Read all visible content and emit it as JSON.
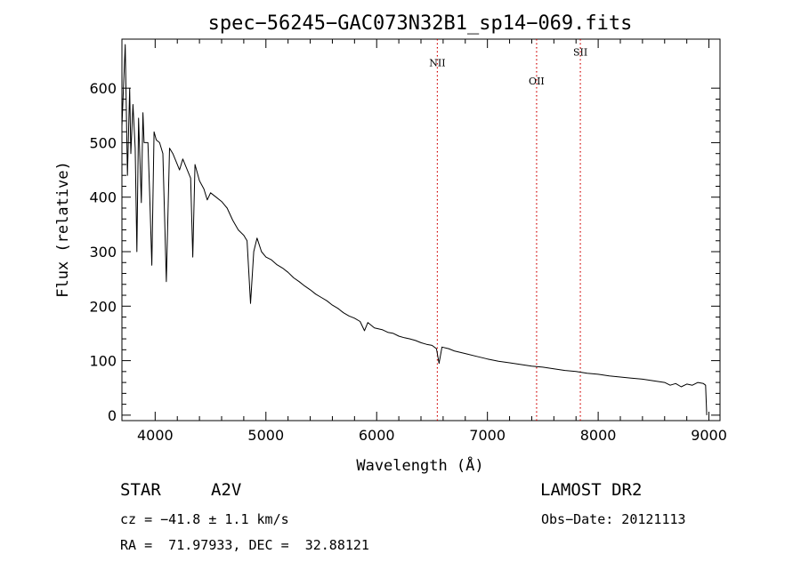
{
  "chart_data": {
    "type": "line",
    "title": "spec−56245−GAC073N32B1_sp14−069.fits",
    "xlabel": "Wavelength (Å)",
    "ylabel": "Flux (relative)",
    "xlim": [
      3700,
      9100
    ],
    "ylim": [
      -10,
      690
    ],
    "xticks": [
      {
        "value": 4000,
        "label": "4000"
      },
      {
        "value": 5000,
        "label": "5000"
      },
      {
        "value": 6000,
        "label": "6000"
      },
      {
        "value": 7000,
        "label": "7000"
      },
      {
        "value": 8000,
        "label": "8000"
      },
      {
        "value": 9000,
        "label": "9000"
      }
    ],
    "yticks": [
      {
        "value": 0,
        "label": "0"
      },
      {
        "value": 100,
        "label": "100"
      },
      {
        "value": 200,
        "label": "200"
      },
      {
        "value": 300,
        "label": "300"
      },
      {
        "value": 400,
        "label": "400"
      },
      {
        "value": 500,
        "label": "500"
      },
      {
        "value": 600,
        "label": "600"
      }
    ],
    "grid": false,
    "line_color": "#000000",
    "line_marker_color": "#d00000",
    "line_markers": [
      {
        "label": "NII",
        "wavelength": 6548,
        "label_y": 640
      },
      {
        "label": "OII",
        "wavelength": 7444,
        "label_y": 607
      },
      {
        "label": "SII",
        "wavelength": 7839,
        "label_y": 660
      }
    ],
    "series": [
      {
        "values": [
          [
            3700,
            530
          ],
          [
            3730,
            680
          ],
          [
            3750,
            440
          ],
          [
            3770,
            600
          ],
          [
            3780,
            480
          ],
          [
            3800,
            570
          ],
          [
            3820,
            490
          ],
          [
            3835,
            300
          ],
          [
            3850,
            545
          ],
          [
            3875,
            390
          ],
          [
            3890,
            555
          ],
          [
            3900,
            500
          ],
          [
            3935,
            500
          ],
          [
            3950,
            410
          ],
          [
            3970,
            275
          ],
          [
            3990,
            520
          ],
          [
            4010,
            505
          ],
          [
            4040,
            500
          ],
          [
            4070,
            480
          ],
          [
            4101,
            245
          ],
          [
            4130,
            490
          ],
          [
            4160,
            480
          ],
          [
            4190,
            465
          ],
          [
            4220,
            450
          ],
          [
            4250,
            470
          ],
          [
            4290,
            450
          ],
          [
            4320,
            435
          ],
          [
            4340,
            290
          ],
          [
            4360,
            460
          ],
          [
            4400,
            430
          ],
          [
            4440,
            415
          ],
          [
            4471,
            395
          ],
          [
            4500,
            408
          ],
          [
            4550,
            400
          ],
          [
            4600,
            392
          ],
          [
            4650,
            380
          ],
          [
            4700,
            358
          ],
          [
            4750,
            340
          ],
          [
            4800,
            330
          ],
          [
            4830,
            320
          ],
          [
            4861,
            205
          ],
          [
            4890,
            300
          ],
          [
            4920,
            325
          ],
          [
            4960,
            300
          ],
          [
            5000,
            290
          ],
          [
            5050,
            285
          ],
          [
            5100,
            276
          ],
          [
            5150,
            270
          ],
          [
            5200,
            262
          ],
          [
            5250,
            252
          ],
          [
            5300,
            245
          ],
          [
            5350,
            237
          ],
          [
            5400,
            230
          ],
          [
            5450,
            222
          ],
          [
            5500,
            216
          ],
          [
            5550,
            210
          ],
          [
            5600,
            202
          ],
          [
            5650,
            196
          ],
          [
            5700,
            188
          ],
          [
            5750,
            182
          ],
          [
            5800,
            178
          ],
          [
            5850,
            172
          ],
          [
            5890,
            155
          ],
          [
            5920,
            170
          ],
          [
            5980,
            160
          ],
          [
            6050,
            157
          ],
          [
            6100,
            152
          ],
          [
            6150,
            150
          ],
          [
            6200,
            145
          ],
          [
            6250,
            142
          ],
          [
            6300,
            140
          ],
          [
            6350,
            137
          ],
          [
            6400,
            133
          ],
          [
            6450,
            130
          ],
          [
            6500,
            128
          ],
          [
            6540,
            122
          ],
          [
            6563,
            95
          ],
          [
            6590,
            125
          ],
          [
            6650,
            122
          ],
          [
            6700,
            118
          ],
          [
            6800,
            113
          ],
          [
            6900,
            108
          ],
          [
            7000,
            103
          ],
          [
            7100,
            99
          ],
          [
            7200,
            96
          ],
          [
            7300,
            93
          ],
          [
            7400,
            90
          ],
          [
            7500,
            88
          ],
          [
            7600,
            85
          ],
          [
            7700,
            82
          ],
          [
            7800,
            80
          ],
          [
            7900,
            77
          ],
          [
            8000,
            75
          ],
          [
            8100,
            72
          ],
          [
            8200,
            70
          ],
          [
            8300,
            68
          ],
          [
            8400,
            66
          ],
          [
            8500,
            63
          ],
          [
            8600,
            60
          ],
          [
            8650,
            55
          ],
          [
            8700,
            58
          ],
          [
            8750,
            52
          ],
          [
            8800,
            57
          ],
          [
            8850,
            55
          ],
          [
            8900,
            60
          ],
          [
            8950,
            58
          ],
          [
            8970,
            55
          ],
          [
            8980,
            0
          ]
        ]
      }
    ]
  },
  "footer": {
    "object": "STAR",
    "subclass": "A2V",
    "cz": "cz = −41.8 ± 1.1 km/s",
    "coords": "RA =  71.97933, DEC =  32.88121",
    "survey": "LAMOST DR2",
    "obs_date": "Obs−Date: 20121113"
  }
}
